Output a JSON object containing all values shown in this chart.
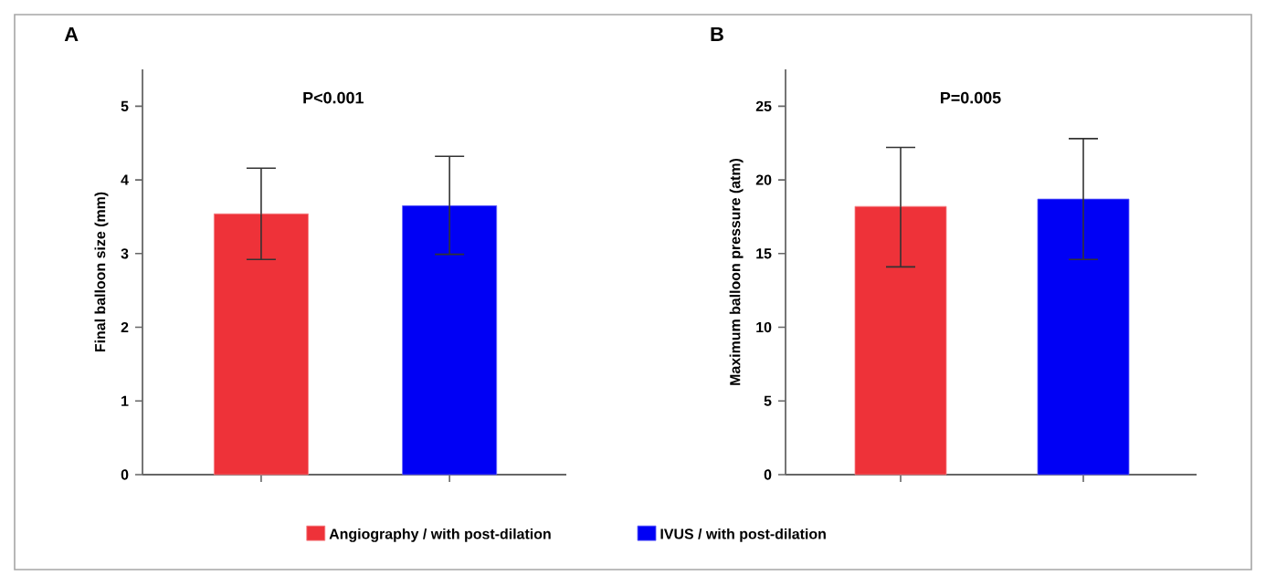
{
  "chart_data": [
    {
      "type": "bar",
      "title": "A",
      "ylabel": "Final balloon size (mm)",
      "categories": [
        null,
        null
      ],
      "stacked": true,
      "ylim": [
        0,
        5.5
      ],
      "yticks": [
        0,
        1,
        2,
        3,
        4,
        5
      ],
      "annotations": [
        "P<0.001"
      ],
      "series": [
        {
          "color": "#ee3239",
          "values": [
            3.54,
            null
          ],
          "errors": [
            [
              2.92,
              4.16
            ],
            null
          ]
        },
        {
          "color": "#0000f5",
          "values": [
            null,
            3.65
          ],
          "errors": [
            null,
            [
              2.99,
              4.32
            ]
          ]
        }
      ]
    },
    {
      "type": "bar",
      "title": "B",
      "ylabel": "Maximum balloon pressure (atm)",
      "categories": [
        null,
        null
      ],
      "stacked": true,
      "ylim": [
        0,
        27.5
      ],
      "yticks": [
        0,
        5,
        10,
        15,
        20,
        25
      ],
      "annotations": [
        "P=0.005"
      ],
      "legend": "bottom",
      "series": [
        {
          "name": "Angiography / with post-dilation",
          "color": "#ee3239",
          "values": [
            18.2,
            null
          ],
          "errors": [
            [
              14.1,
              22.2
            ],
            null
          ]
        },
        {
          "name": "IVUS / with post-dilation",
          "color": "#0000f5",
          "values": [
            null,
            18.7
          ],
          "errors": [
            null,
            [
              14.6,
              22.8
            ]
          ]
        }
      ]
    }
  ]
}
